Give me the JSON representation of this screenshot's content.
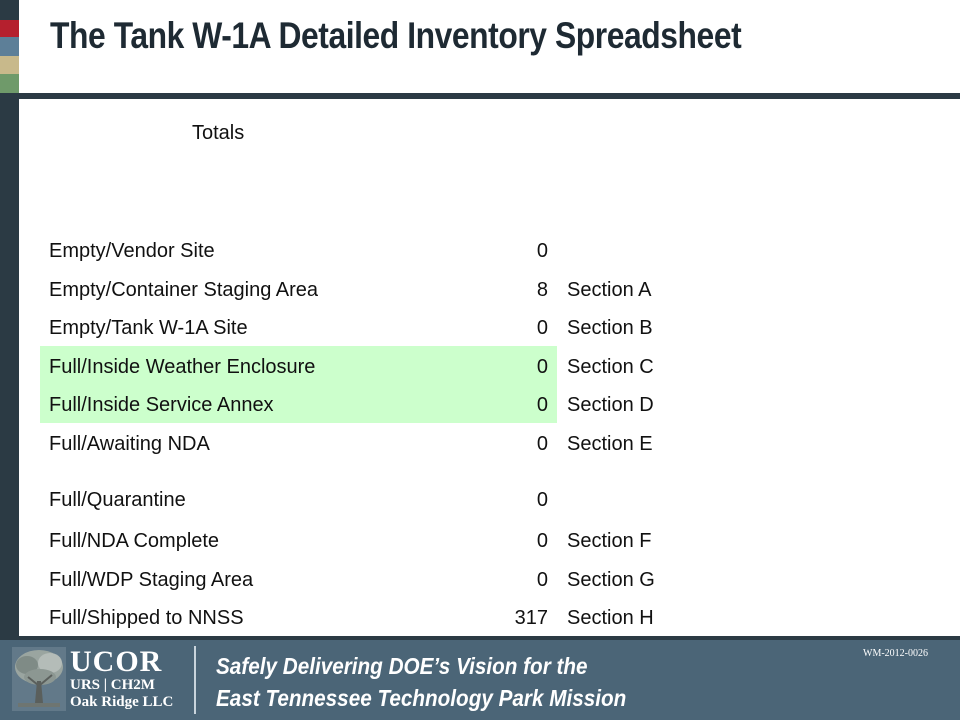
{
  "slide": {
    "title": "The Tank W-1A Detailed Inventory Spreadsheet",
    "totals_label": "Totals"
  },
  "rows": [
    {
      "label": "Empty/Vendor Site",
      "count": "0",
      "section": ""
    },
    {
      "label": "Empty/Container Staging Area",
      "count": "8",
      "section": "Section A"
    },
    {
      "label": "Empty/Tank W-1A Site",
      "count": "0",
      "section": "Section B"
    },
    {
      "label": "Full/Inside Weather Enclosure",
      "count": "0",
      "section": "Section C"
    },
    {
      "label": "Full/Inside Service Annex",
      "count": "0",
      "section": "Section D"
    },
    {
      "label": "Full/Awaiting NDA",
      "count": "0",
      "section": "Section E"
    },
    {
      "label": "Full/Quarantine",
      "count": "0",
      "section": ""
    },
    {
      "label": "Full/NDA Complete",
      "count": "0",
      "section": "Section F"
    },
    {
      "label": "Full/WDP Staging Area",
      "count": "0",
      "section": "Section G"
    },
    {
      "label": "Full/Shipped to NNSS",
      "count": "317",
      "section": "Section H"
    }
  ],
  "footer": {
    "logo_main": "UCOR",
    "logo_partners": "URS | CH2M",
    "logo_company": "Oak Ridge LLC",
    "tagline_line1": "Safely Delivering DOE’s Vision for the",
    "tagline_line2": "East Tennessee Technology Park Mission",
    "doc_number": "WM-2012-0026"
  },
  "colors": {
    "highlight": "#ccffcc",
    "footer_bg": "#4b6577",
    "frame": "#2b3a44"
  }
}
